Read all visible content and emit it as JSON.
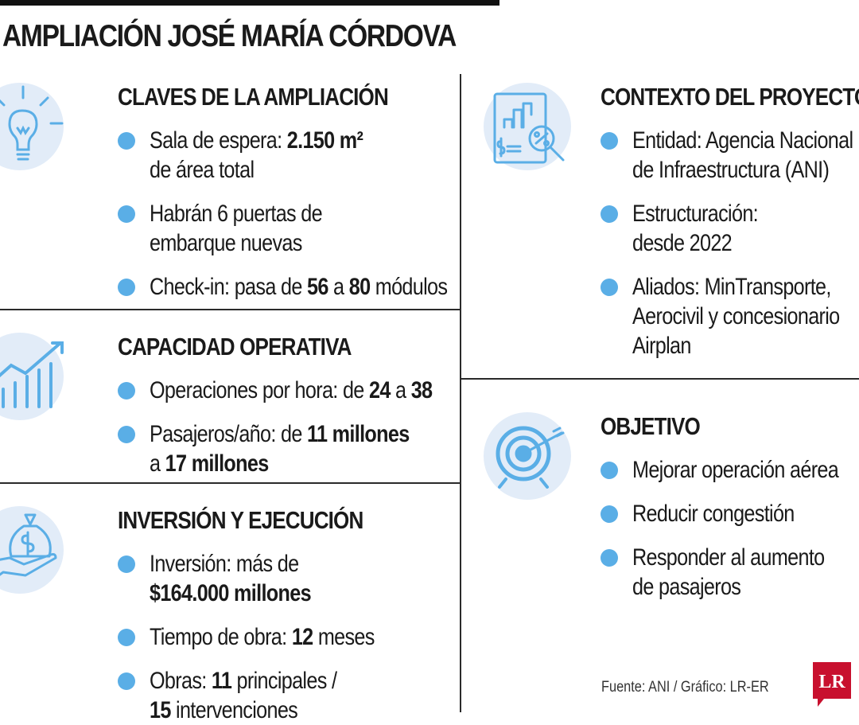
{
  "title": "AMPLIACIÓN JOSÉ MARÍA CÓRDOVA",
  "colors": {
    "accent": "#5aaee6",
    "icon_bg": "#e2ecf8",
    "logo": "#c8102e",
    "rule": "#2a2a2a"
  },
  "claves": {
    "icon": "lightbulb-icon",
    "title": "CLAVES DE LA AMPLIACIÓN",
    "sala": {
      "pre": "Sala de espera: ",
      "value": "2.150 m²",
      "l2": "de área total"
    },
    "puertas": {
      "l1": "Habrán 6 puertas de",
      "l2": "embarque nuevas"
    },
    "checkin": {
      "pre": "Check-in: pasa de ",
      "from": "56",
      "mid": " a ",
      "to": "80",
      "post": " módulos"
    }
  },
  "capacidad": {
    "icon": "growth-chart-icon",
    "title": "CAPACIDAD OPERATIVA",
    "operaciones": {
      "pre": "Operaciones por hora: de ",
      "from": "24",
      "mid": " a ",
      "to": "38"
    },
    "pasajeros": {
      "pre": "Pasajeros/año: de ",
      "from": "11 millones",
      "l2pre": "a ",
      "to": "17 millones"
    }
  },
  "inversion": {
    "icon": "money-bag-hand-icon",
    "title": "INVERSIÓN Y EJECUCIÓN",
    "monto": {
      "l1": "Inversión: más de",
      "value": "$164.000 millones"
    },
    "tiempo": {
      "pre": "Tiempo de obra: ",
      "value": "12",
      "post": " meses"
    },
    "obras": {
      "pre": "Obras: ",
      "value1": "11",
      "post1": " principales /",
      "value2": "15",
      "post2": " intervenciones"
    }
  },
  "contexto": {
    "icon": "document-analysis-icon",
    "title": "CONTEXTO DEL PROYECTO",
    "entidad": {
      "l1": "Entidad: Agencia Nacional",
      "l2": "de Infraestructura (ANI)"
    },
    "estructuracion": {
      "l1": "Estructuración:",
      "l2": "desde 2022"
    },
    "aliados": {
      "l1": "Aliados: MinTransporte,",
      "l2": "Aerocivil y concesionario",
      "l3": "Airplan"
    }
  },
  "objetivo": {
    "icon": "target-icon",
    "title": "OBJETIVO",
    "items": [
      "Mejorar operación aérea",
      "Reducir congestión"
    ],
    "aumento": {
      "l1": "Responder al aumento",
      "l2": "de pasajeros"
    }
  },
  "source": "Fuente: ANI / Gráfico: LR-ER",
  "logo_text": "LR"
}
